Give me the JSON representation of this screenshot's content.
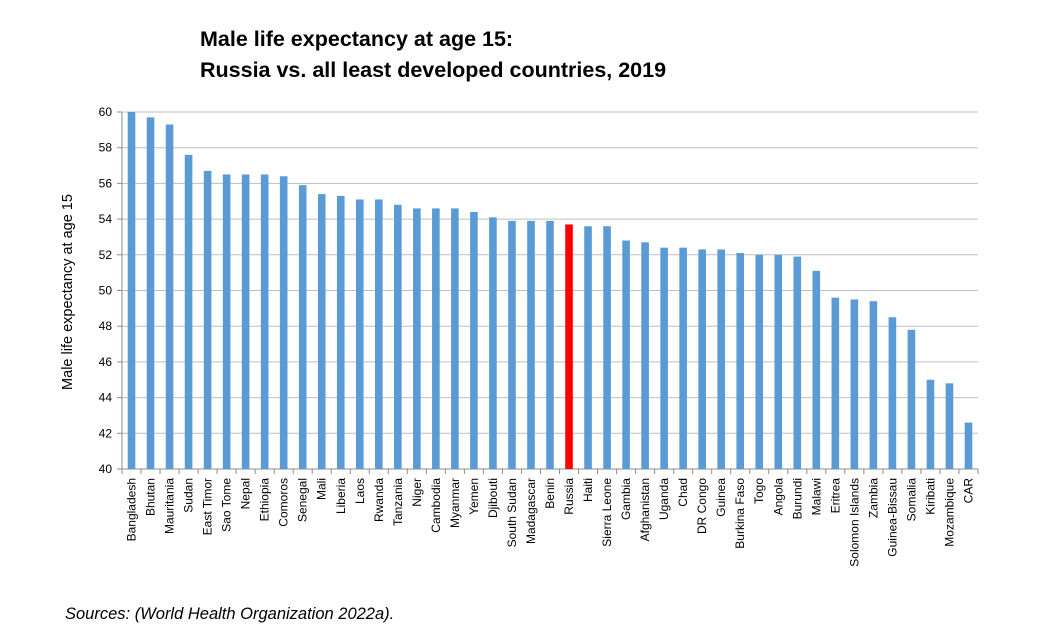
{
  "title_line1": "Male life expectancy at age 15:",
  "title_line2": "Russia vs. all least developed countries, 2019",
  "source": "Sources: (World Health Organization 2022a).",
  "chart_data": {
    "type": "bar",
    "ylabel": "Male life expectancy at age 15",
    "xlabel": "",
    "ylim": [
      40,
      60
    ],
    "yticks": [
      40,
      42,
      44,
      46,
      48,
      50,
      52,
      54,
      56,
      58,
      60
    ],
    "grid": true,
    "bar_color": "#5b9bd5",
    "highlight_color": "#ff0000",
    "highlight_category": "Russia",
    "categories": [
      "Bangladesh",
      "Bhutan",
      "Mauritania",
      "Sudan",
      "East Timor",
      "Sao Tome",
      "Nepal",
      "Ethiopia",
      "Comoros",
      "Senegal",
      "Mali",
      "Liberia",
      "Laos",
      "Rwanda",
      "Tanzania",
      "Niger",
      "Cambodia",
      "Myanmar",
      "Yemen",
      "Djibouti",
      "South Sudan",
      "Madagascar",
      "Benin",
      "Russia",
      "Haiti",
      "Sierra Leone",
      "Gambia",
      "Afghanistan",
      "Uganda",
      "Chad",
      "DR Congo",
      "Guinea",
      "Burkina Faso",
      "Togo",
      "Angola",
      "Burundi",
      "Malawi",
      "Eritrea",
      "Solomon Islands",
      "Zambia",
      "Guinea-Bissau",
      "Somalia",
      "Kiribati",
      "Mozambique",
      "CAR"
    ],
    "values": [
      60.0,
      59.7,
      59.3,
      57.6,
      56.7,
      56.5,
      56.5,
      56.5,
      56.4,
      55.9,
      55.4,
      55.3,
      55.1,
      55.1,
      54.8,
      54.6,
      54.6,
      54.6,
      54.4,
      54.1,
      53.9,
      53.9,
      53.9,
      53.7,
      53.6,
      53.6,
      52.8,
      52.7,
      52.4,
      52.4,
      52.3,
      52.3,
      52.1,
      52.0,
      52.0,
      51.9,
      51.1,
      49.6,
      49.5,
      49.4,
      48.5,
      47.8,
      45.0,
      44.8,
      42.6
    ]
  }
}
